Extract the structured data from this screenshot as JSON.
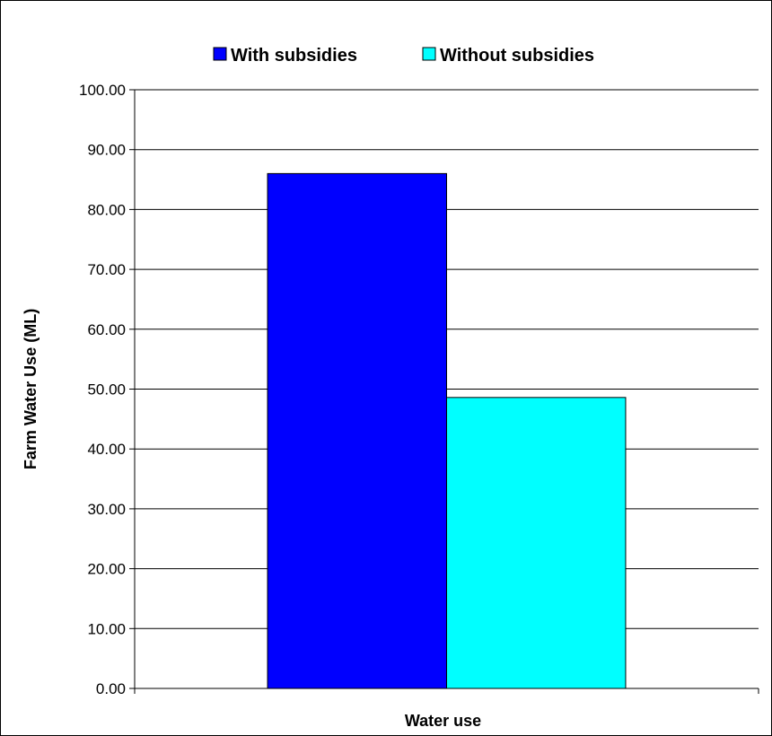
{
  "chart_data": {
    "type": "bar",
    "categories": [
      "Water use"
    ],
    "series": [
      {
        "name": "With subsidies",
        "color": "#0000FF",
        "values": [
          86.0
        ]
      },
      {
        "name": "Without subsidies",
        "color": "#00FFFF",
        "values": [
          48.6
        ]
      }
    ],
    "xlabel": "Water use",
    "ylabel": "Farm Water Use (ML)",
    "ylim": [
      0,
      100
    ],
    "yticks": [
      "0.00",
      "10.00",
      "20.00",
      "30.00",
      "40.00",
      "50.00",
      "60.00",
      "70.00",
      "80.00",
      "90.00",
      "100.00"
    ],
    "grid": true,
    "legend_position": "top"
  }
}
